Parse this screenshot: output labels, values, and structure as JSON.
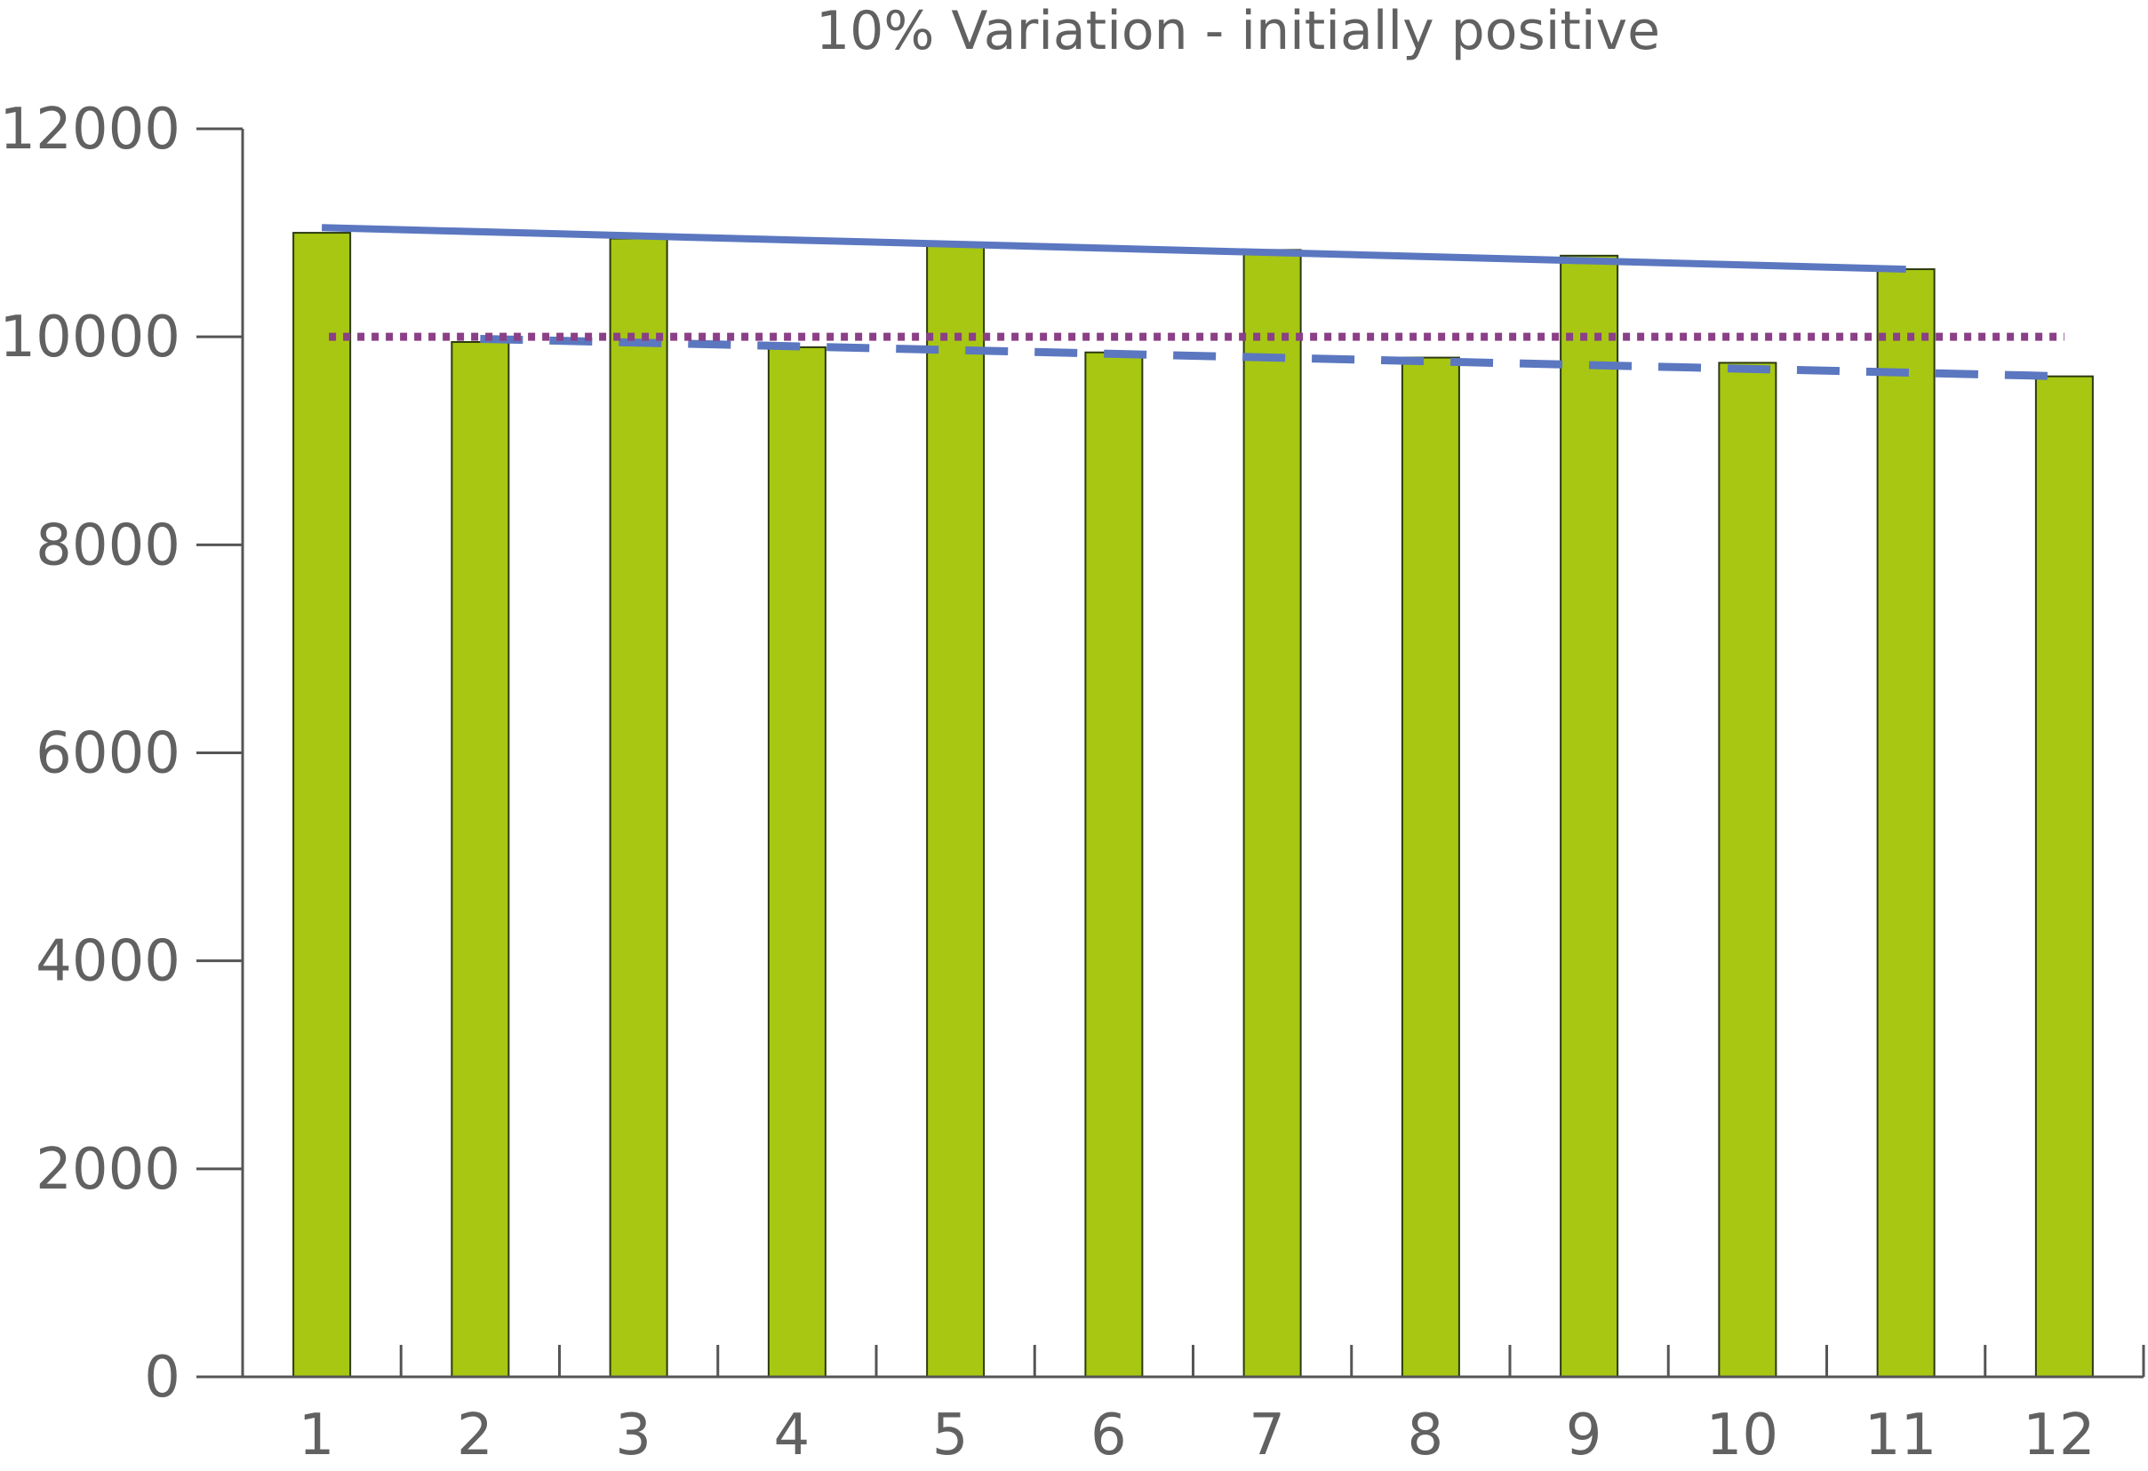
{
  "chart_data": {
    "type": "bar",
    "title": "10% Variation - initially positive",
    "xlabel": "",
    "ylabel": "",
    "categories": [
      "1",
      "2",
      "3",
      "4",
      "5",
      "6",
      "7",
      "8",
      "9",
      "10",
      "11",
      "12"
    ],
    "series": [
      {
        "type": "bar",
        "color": "#a8c712",
        "values": [
          11000,
          9950,
          10945,
          9900,
          10890,
          9850,
          10835,
          9800,
          10780,
          9750,
          10650,
          9620
        ]
      },
      {
        "type": "line",
        "style": "solid",
        "color": "#5b77c0",
        "x": [
          "1",
          "11"
        ],
        "values": [
          11050,
          10650
        ]
      },
      {
        "type": "line",
        "style": "dashed",
        "color": "#5b77c0",
        "x": [
          "2",
          "12"
        ],
        "values": [
          9980,
          9620
        ]
      },
      {
        "type": "line",
        "style": "dotted",
        "color": "#8a3f86",
        "x": [
          "1",
          "12"
        ],
        "values": [
          10000,
          10000
        ]
      }
    ],
    "ylim": [
      0,
      12000
    ],
    "yticks": [
      0,
      2000,
      4000,
      6000,
      8000,
      10000,
      12000
    ],
    "grid": false,
    "legend": "none"
  }
}
